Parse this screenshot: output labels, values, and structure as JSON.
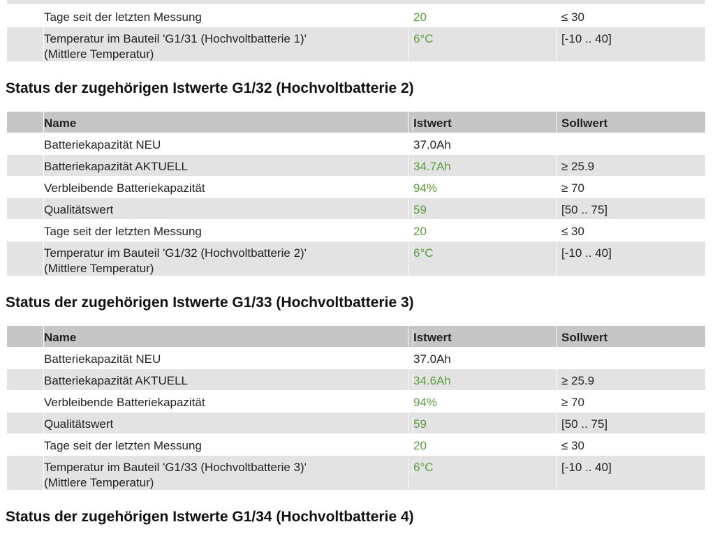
{
  "sections": [
    {
      "table": {
        "rows": [
          [
            "Tage seit der letzten Messung",
            "20",
            "≤ 30"
          ],
          [
            "Temperatur im Bauteil 'G1/31 (Hochvoltbatterie 1)'\n(Mittlere Temperatur)",
            "6°C",
            "[-10 .. 40]"
          ]
        ]
      }
    },
    {
      "heading": "Status der zugehörigen Istwerte G1/32 (Hochvoltbatterie 2)",
      "table": {
        "header": [
          "Name",
          "Istwert",
          "Sollwert"
        ],
        "rows": [
          [
            "Batteriekapazität NEU",
            "37.0Ah"
          ],
          [
            "Batteriekapazität AKTUELL",
            "34.7Ah",
            "≥ 25.9"
          ],
          [
            "Verbleibende Batteriekapazität",
            "94%",
            "≥ 70"
          ],
          [
            "Qualitätswert",
            "59",
            "[50 .. 75]"
          ],
          [
            "Tage seit der letzten Messung",
            "20",
            "≤ 30"
          ],
          [
            "Temperatur im Bauteil 'G1/32 (Hochvoltbatterie 2)'\n(Mittlere Temperatur)",
            "6°C",
            "[-10 .. 40]"
          ]
        ]
      }
    },
    {
      "heading": "Status der zugehörigen Istwerte G1/33 (Hochvoltbatterie 3)",
      "table": {
        "header": [
          "Name",
          "Istwert",
          "Sollwert"
        ],
        "rows": [
          [
            "Batteriekapazität NEU",
            "37.0Ah"
          ],
          [
            "Batteriekapazität AKTUELL",
            "34.6Ah",
            "≥ 25.9"
          ],
          [
            "Verbleibende Batteriekapazität",
            "94%",
            "≥ 70"
          ],
          [
            "Qualitätswert",
            "59",
            "[50 .. 75]"
          ],
          [
            "Tage seit der letzten Messung",
            "20",
            "≤ 30"
          ],
          [
            "Temperatur im Bauteil 'G1/33 (Hochvoltbatterie 3)'\n(Mittlere Temperatur)",
            "6°C",
            "[-10 .. 40]"
          ]
        ]
      }
    },
    {
      "heading": "Status der zugehörigen Istwerte G1/34 (Hochvoltbatterie 4)"
    }
  ]
}
